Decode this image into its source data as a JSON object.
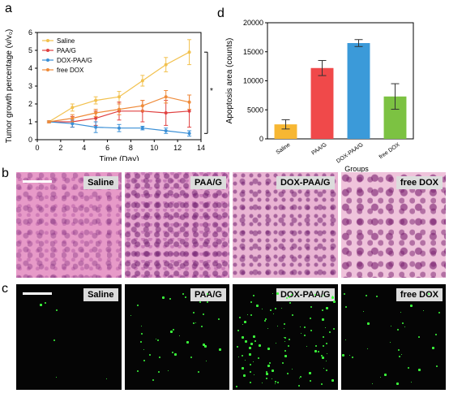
{
  "panel_labels": {
    "a": "a",
    "b": "b",
    "c": "c",
    "d": "d"
  },
  "chart_data": [
    {
      "type": "line",
      "xlabel": "Time (Day)",
      "ylabel": "Tumor growth percentage (v/v₀)",
      "xlim": [
        0,
        14
      ],
      "ylim": [
        0,
        6
      ],
      "xticks": [
        "0",
        "2",
        "4",
        "6",
        "8",
        "10",
        "12",
        "14"
      ],
      "yticks": [
        "0",
        "1",
        "2",
        "3",
        "4",
        "5",
        "6"
      ],
      "significance": "*",
      "legend_position": "top-left",
      "series": [
        {
          "name": "Saline",
          "color": "#f2c14e",
          "x": [
            1,
            3,
            5,
            7,
            9,
            11,
            13
          ],
          "y": [
            1.0,
            1.8,
            2.2,
            2.4,
            3.3,
            4.2,
            4.9
          ],
          "err": [
            0.05,
            0.2,
            0.2,
            0.3,
            0.3,
            0.4,
            0.7
          ]
        },
        {
          "name": "PAA/G",
          "color": "#e04040",
          "x": [
            1,
            3,
            5,
            7,
            9,
            11,
            13
          ],
          "y": [
            1.0,
            1.0,
            1.2,
            1.6,
            1.6,
            1.5,
            1.6
          ],
          "err": [
            0.05,
            0.3,
            0.4,
            0.5,
            0.6,
            0.7,
            0.9
          ]
        },
        {
          "name": "DOX-PAA/G",
          "color": "#3a8fd6",
          "x": [
            1,
            3,
            5,
            7,
            9,
            11,
            13
          ],
          "y": [
            1.0,
            0.9,
            0.7,
            0.65,
            0.65,
            0.5,
            0.35
          ],
          "err": [
            0.05,
            0.2,
            0.3,
            0.2,
            0.1,
            0.15,
            0.15
          ]
        },
        {
          "name": "free DOX",
          "color": "#ef8b3a",
          "x": [
            1,
            3,
            5,
            7,
            9,
            11,
            13
          ],
          "y": [
            1.0,
            1.2,
            1.5,
            1.7,
            1.9,
            2.4,
            2.1
          ],
          "err": [
            0.05,
            0.2,
            0.2,
            0.3,
            0.3,
            0.35,
            0.4
          ]
        }
      ]
    },
    {
      "type": "bar",
      "xlabel": "Groups",
      "ylabel": "Apoptosis area (counts)",
      "ylim": [
        0,
        20000
      ],
      "yticks": [
        "0",
        "5000",
        "10000",
        "15000",
        "20000"
      ],
      "categories": [
        "Saline",
        "PAA/G",
        "DOX-PAA/G",
        "free DOX"
      ],
      "values": [
        2500,
        12200,
        16500,
        7300
      ],
      "errors": [
        800,
        1300,
        600,
        2200
      ],
      "colors": [
        "#f7b733",
        "#f0494a",
        "#3b9ad9",
        "#7cc242"
      ]
    }
  ],
  "panel_b": {
    "tiles": [
      {
        "label": "Saline"
      },
      {
        "label": "PAA/G"
      },
      {
        "label": "DOX-PAA/G"
      },
      {
        "label": "free DOX"
      }
    ]
  },
  "panel_c": {
    "tiles": [
      {
        "label": "Saline"
      },
      {
        "label": "PAA/G"
      },
      {
        "label": "DOX-PAA/G"
      },
      {
        "label": "free DOX"
      }
    ]
  }
}
